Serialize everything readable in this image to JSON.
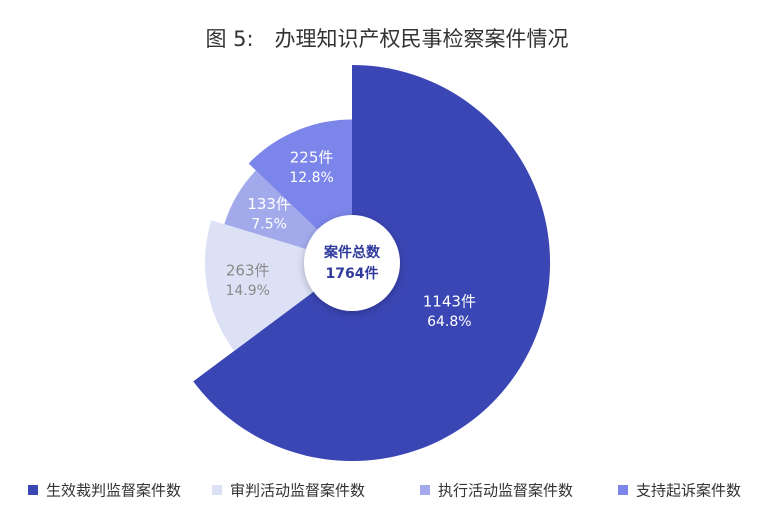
{
  "chart_data": {
    "type": "pie",
    "title": "图 5:　办理知识产权民事检察案件情况",
    "center_label": "案件总数",
    "total": 1764,
    "total_label": "1764件",
    "series": [
      {
        "name": "生效裁判监督案件数",
        "color": "#3b46b5",
        "value": 1143,
        "value_label": "1143件",
        "percent": 64.8,
        "percent_label": "64.8%"
      },
      {
        "name": "审判活动监督案件数",
        "color": "#dde1f6",
        "value": 263,
        "value_label": "263件",
        "percent": 14.9,
        "percent_label": "14.9%"
      },
      {
        "name": "执行活动监督案件数",
        "color": "#a3aaec",
        "value": 133,
        "value_label": "133件",
        "percent": 7.5,
        "percent_label": "7.5%"
      },
      {
        "name": "支持起诉案件数",
        "color": "#7c86ea",
        "value": 225,
        "value_label": "225件",
        "percent": 12.8,
        "percent_label": "12.8%"
      }
    ]
  }
}
